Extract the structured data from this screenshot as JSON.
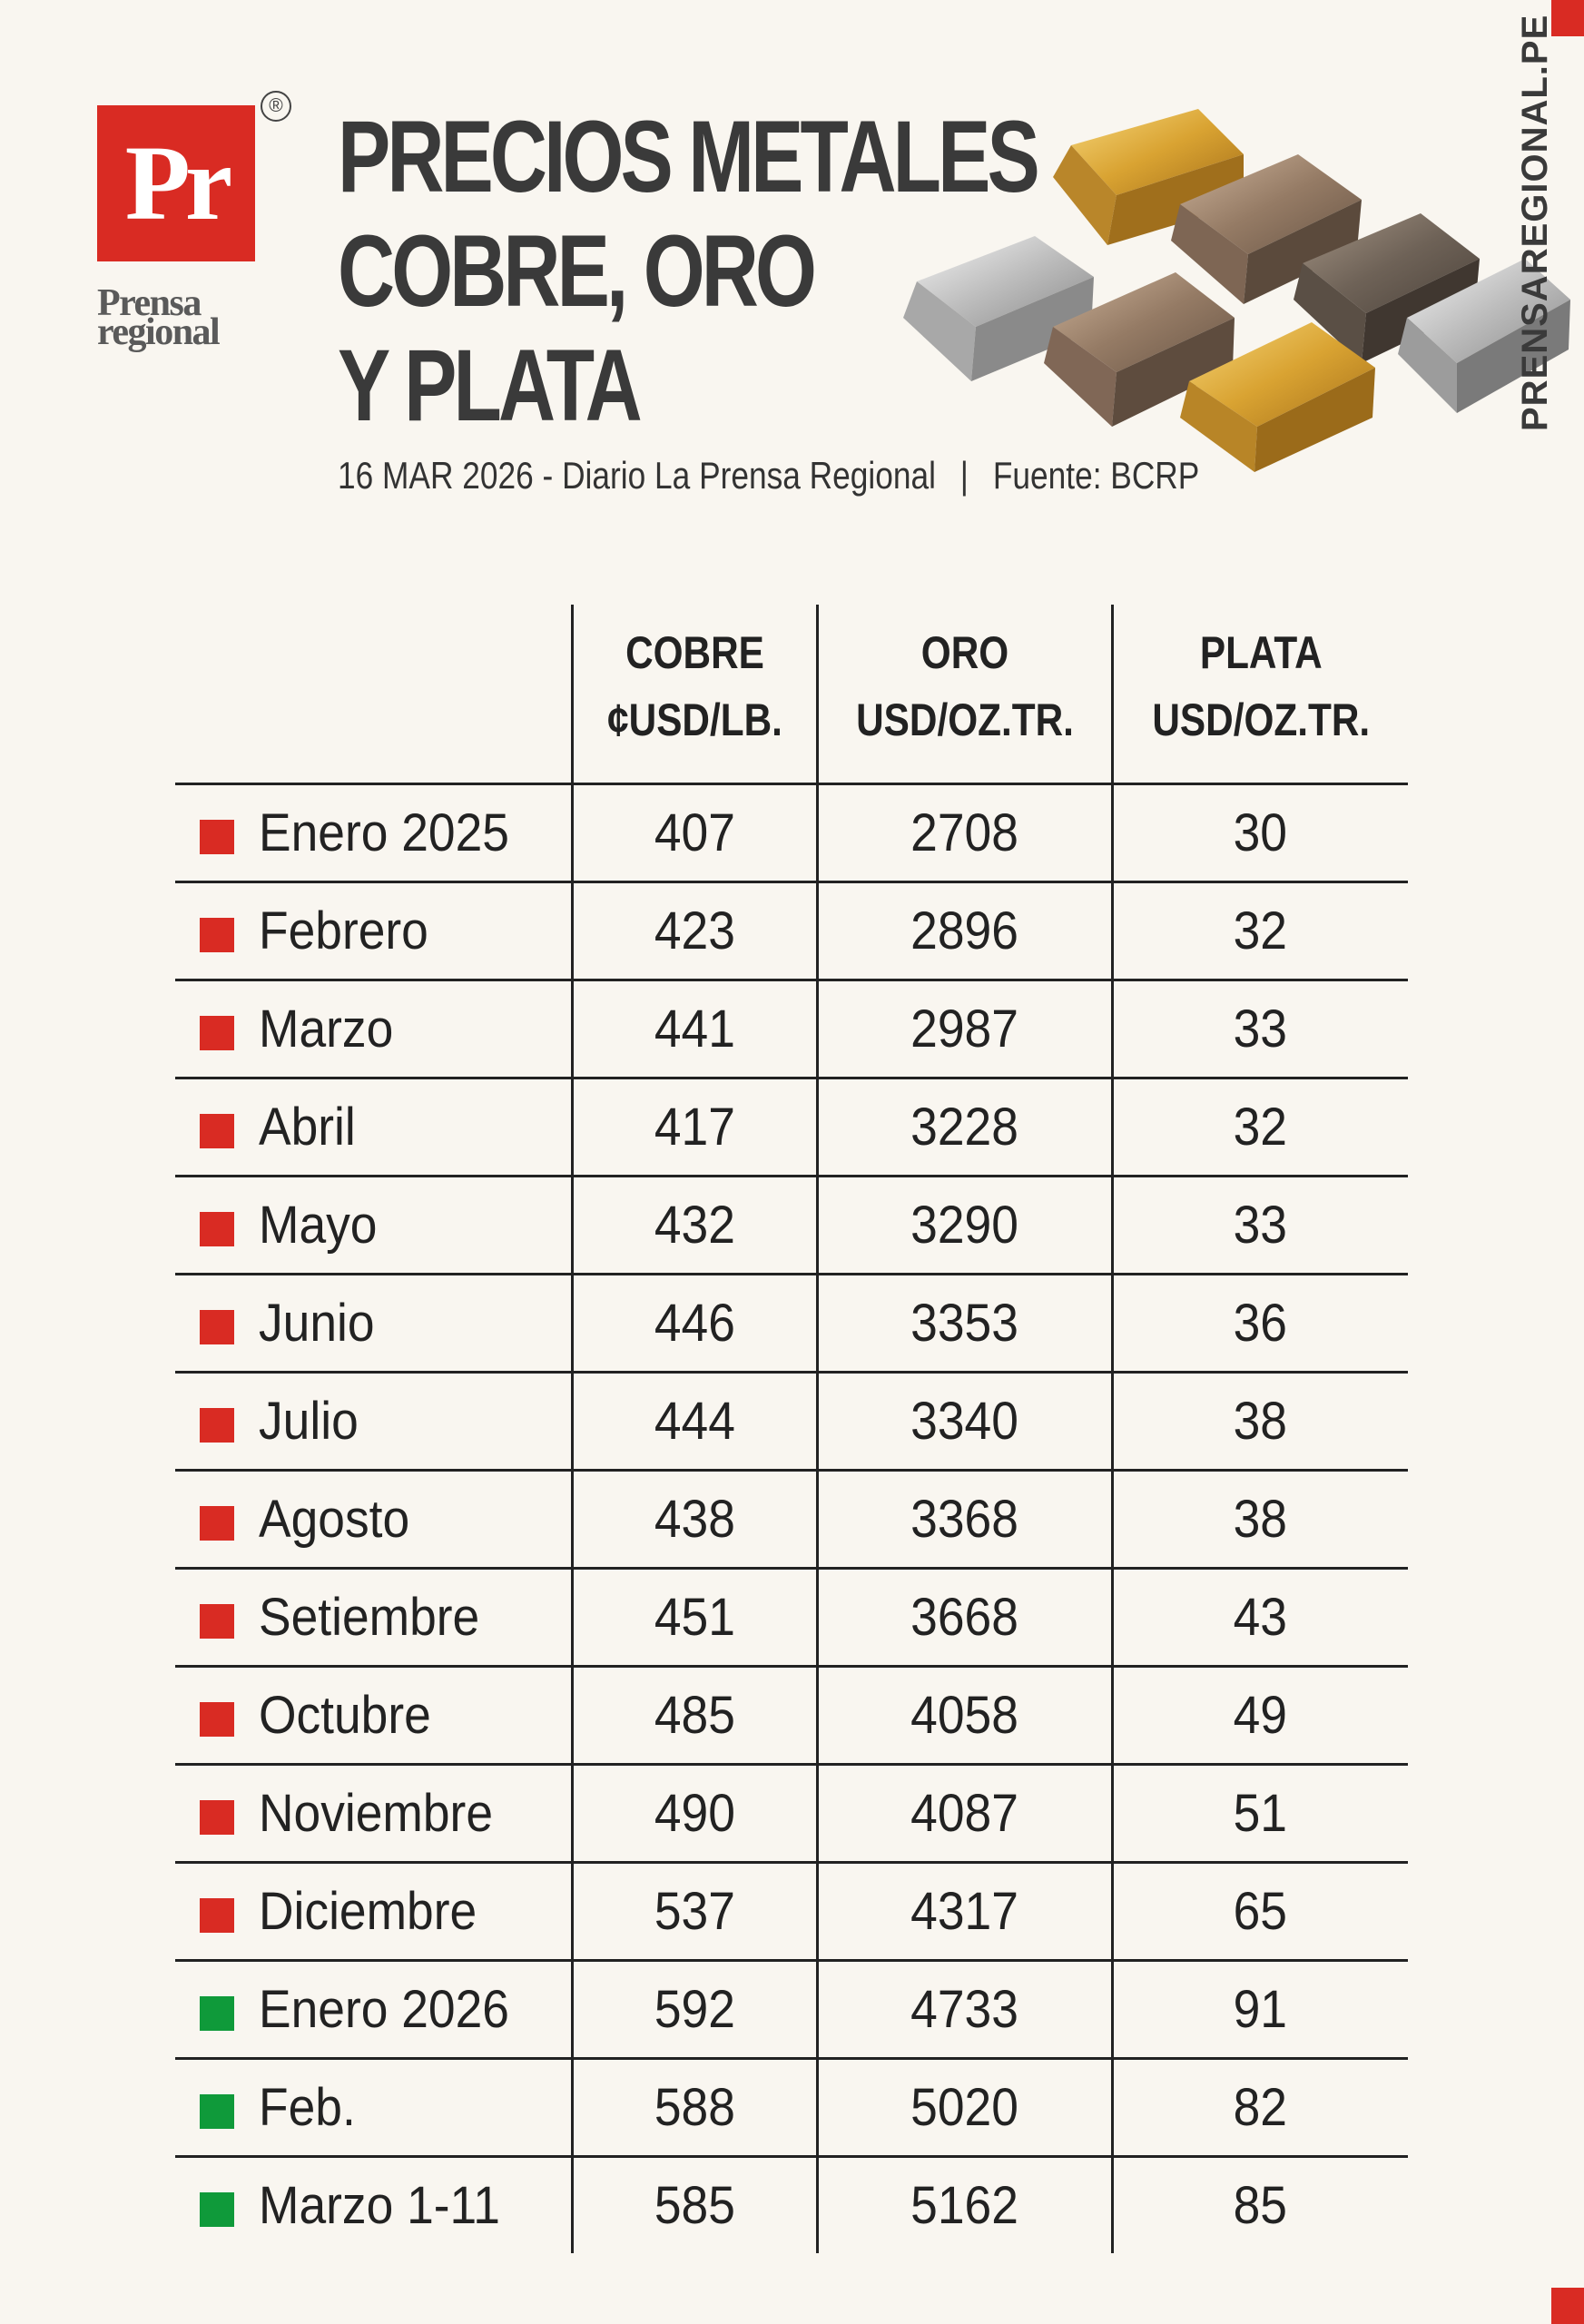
{
  "logo": {
    "mark": "Pr",
    "registered": "®",
    "name_line1": "Prensa",
    "name_line2": "regional"
  },
  "title": {
    "line1": "PRECIOS METALES",
    "line2": "COBRE, ORO",
    "line3": "Y PLATA"
  },
  "subtitle": {
    "date_source": "16 MAR 2026 - Diario La Prensa Regional",
    "separator": "|",
    "fuente": "Fuente: BCRP"
  },
  "site": "PRENSAREGIONAL.PE",
  "colors": {
    "brand_red": "#d92b23",
    "marker_2025": "#d92b23",
    "marker_2026": "#0f9a3a",
    "text": "#222222"
  },
  "table": {
    "headers": [
      {
        "line1": "COBRE",
        "line2": "¢USD/LB."
      },
      {
        "line1": "ORO",
        "line2": "USD/OZ.TR."
      },
      {
        "line1": "PLATA",
        "line2": "USD/OZ.TR."
      }
    ],
    "rows": [
      {
        "month": "Enero 2025",
        "cobre": "407",
        "oro": "2708",
        "plata": "30",
        "marker": "red"
      },
      {
        "month": "Febrero",
        "cobre": "423",
        "oro": "2896",
        "plata": "32",
        "marker": "red"
      },
      {
        "month": "Marzo",
        "cobre": "441",
        "oro": "2987",
        "plata": "33",
        "marker": "red"
      },
      {
        "month": "Abril",
        "cobre": "417",
        "oro": "3228",
        "plata": "32",
        "marker": "red"
      },
      {
        "month": "Mayo",
        "cobre": "432",
        "oro": "3290",
        "plata": "33",
        "marker": "red"
      },
      {
        "month": "Junio",
        "cobre": "446",
        "oro": "3353",
        "plata": "36",
        "marker": "red"
      },
      {
        "month": "Julio",
        "cobre": "444",
        "oro": "3340",
        "plata": "38",
        "marker": "red"
      },
      {
        "month": "Agosto",
        "cobre": "438",
        "oro": "3368",
        "plata": "38",
        "marker": "red"
      },
      {
        "month": "Setiembre",
        "cobre": "451",
        "oro": "3668",
        "plata": "43",
        "marker": "red"
      },
      {
        "month": "Octubre",
        "cobre": "485",
        "oro": "4058",
        "plata": "49",
        "marker": "red"
      },
      {
        "month": "Noviembre",
        "cobre": "490",
        "oro": "4087",
        "plata": "51",
        "marker": "red"
      },
      {
        "month": "Diciembre",
        "cobre": "537",
        "oro": "4317",
        "plata": "65",
        "marker": "red"
      },
      {
        "month": "Enero 2026",
        "cobre": "592",
        "oro": "4733",
        "plata": "91",
        "marker": "green"
      },
      {
        "month": "Feb.",
        "cobre": "588",
        "oro": "5020",
        "plata": "82",
        "marker": "green"
      },
      {
        "month": "Marzo 1-11",
        "cobre": "585",
        "oro": "5162",
        "plata": "85",
        "marker": "green"
      }
    ]
  }
}
